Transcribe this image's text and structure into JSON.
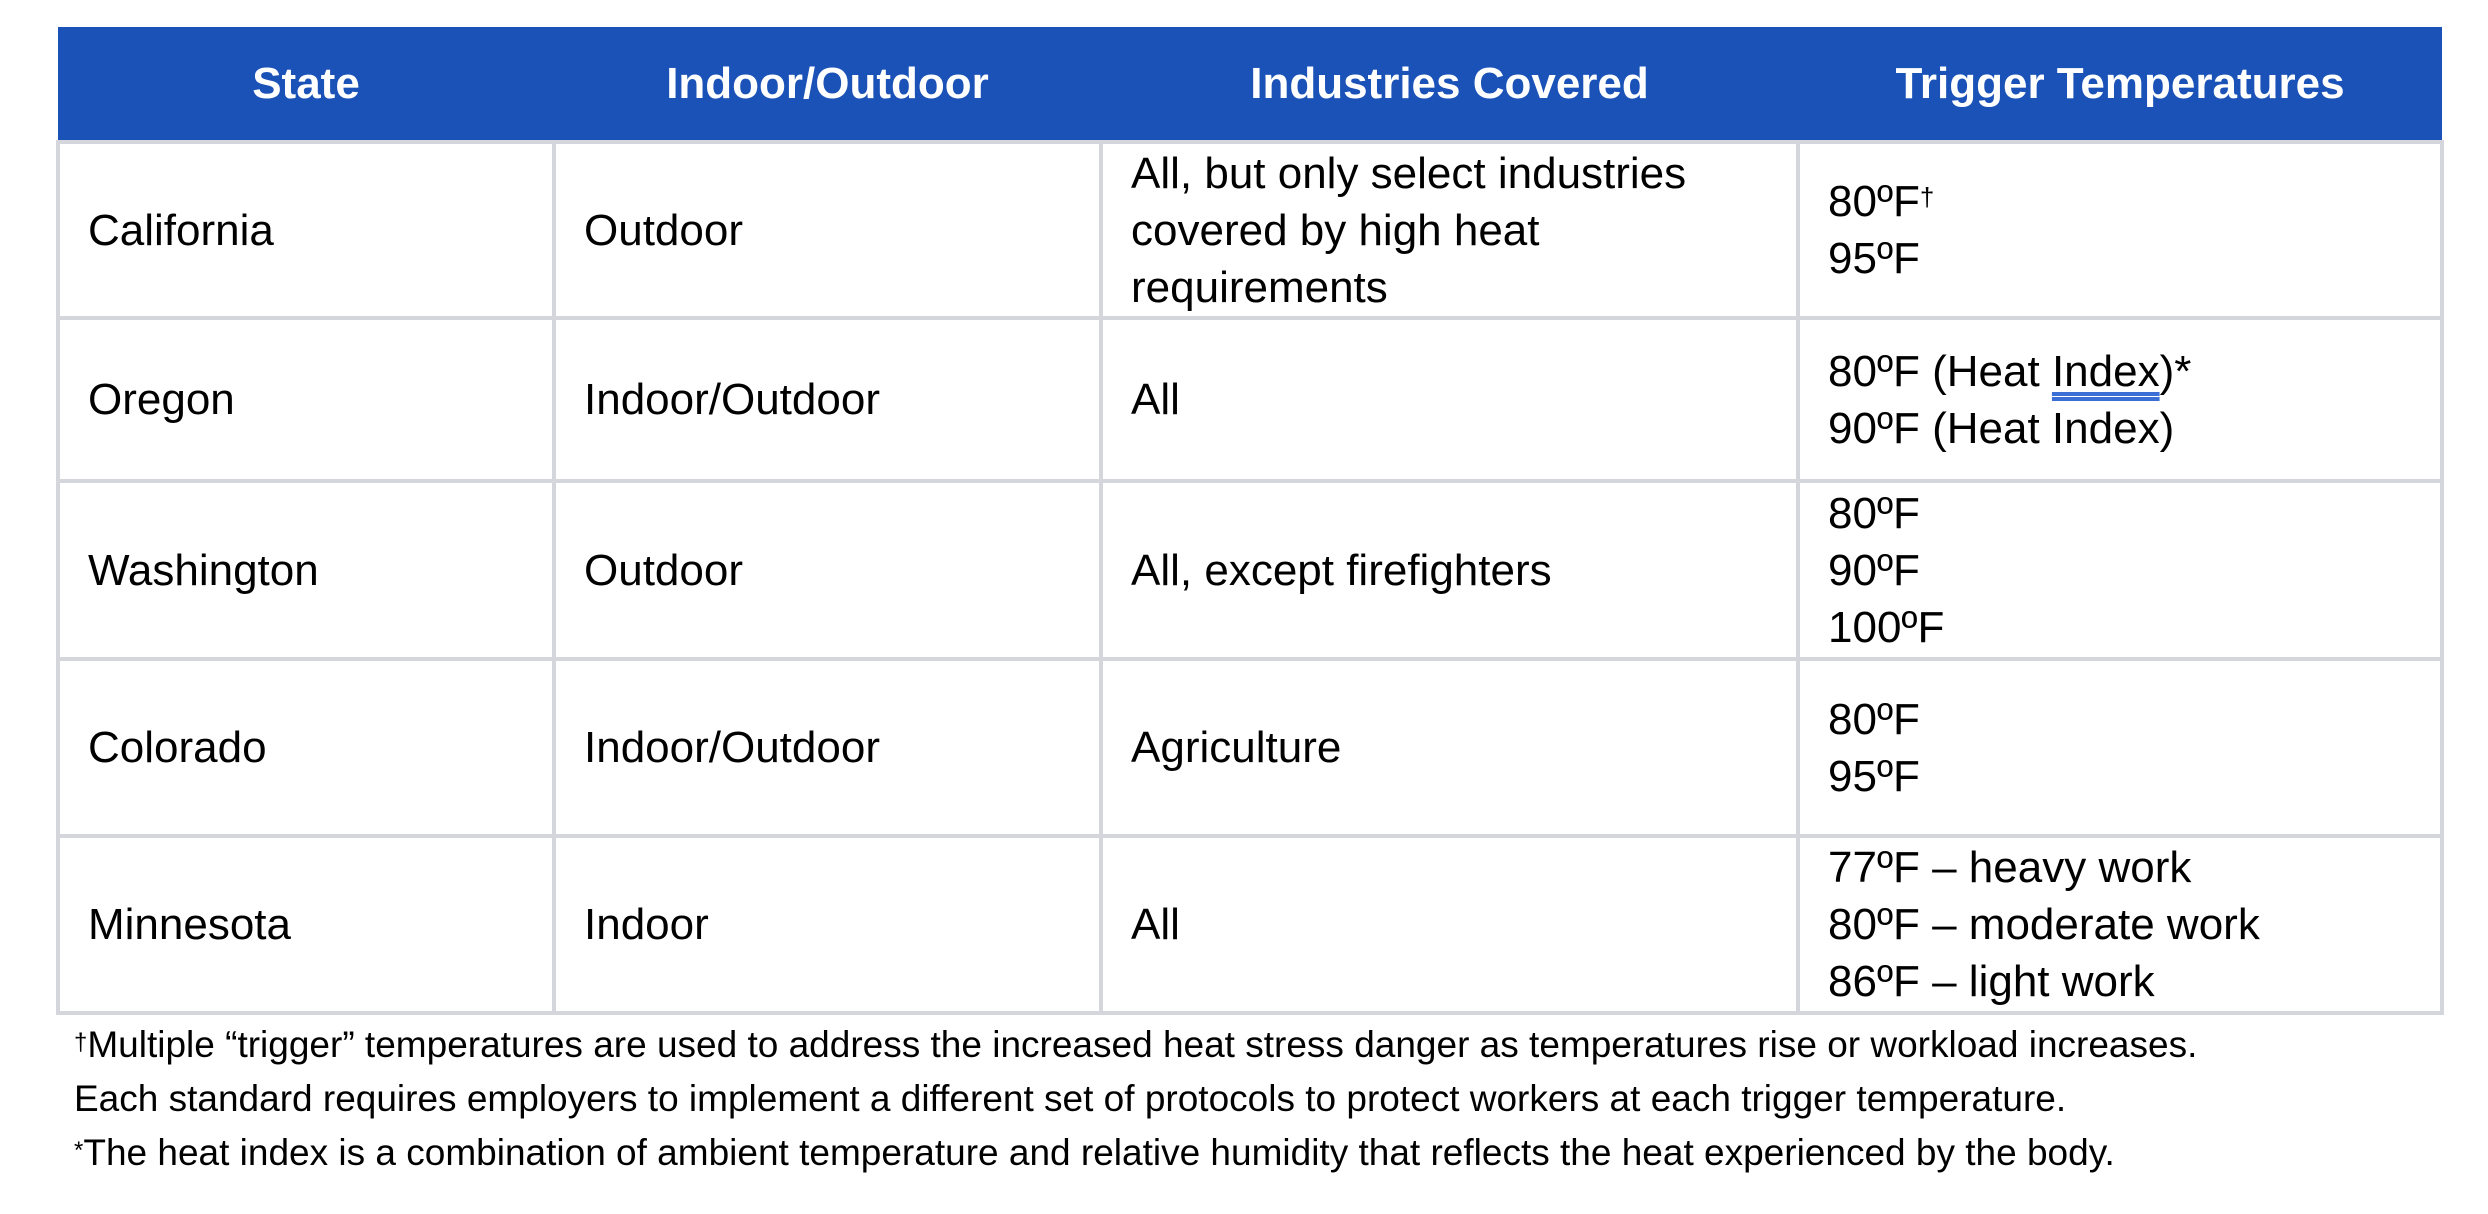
{
  "table": {
    "headers": [
      "State",
      "Indoor/Outdoor",
      "Industries Covered",
      "Trigger Temperatures"
    ],
    "rows": [
      {
        "state": "California",
        "scope": "Outdoor",
        "industries": [
          "All, but only select industries",
          "covered by high heat",
          "requirements"
        ],
        "triggers": [
          "80ºF",
          "95ºF"
        ],
        "trigger0_mark": "†"
      },
      {
        "state": "Oregon",
        "scope": "Indoor/Outdoor",
        "industries": [
          "All"
        ],
        "triggers_oregon": {
          "l1a": "80ºF (Heat ",
          "l1b": "Index",
          "l1c": ")*",
          "l2": "90ºF (Heat Index)"
        }
      },
      {
        "state": "Washington",
        "scope": "Outdoor",
        "industries": [
          "All, except firefighters"
        ],
        "triggers": [
          "80ºF",
          "90ºF",
          "100ºF"
        ]
      },
      {
        "state": "Colorado",
        "scope": "Indoor/Outdoor",
        "industries": [
          "Agriculture"
        ],
        "triggers": [
          "80ºF",
          "95ºF"
        ]
      },
      {
        "state": "Minnesota",
        "scope": "Indoor",
        "industries": [
          "All"
        ],
        "triggers": [
          "77ºF – heavy work",
          "80ºF – moderate work",
          "86ºF – light work"
        ]
      }
    ]
  },
  "footnotes": {
    "dagger": "†",
    "line1": "Multiple “trigger” temperatures are used to address the increased heat stress danger as temperatures rise or workload increases.",
    "line2": "Each standard requires employers to implement a different set of protocols to protect workers at each trigger temperature.",
    "asterisk": "*",
    "line3": "The heat index is a combination of ambient temperature and relative humidity that reflects the heat experienced by the body."
  },
  "colors": {
    "header_bg": "#1a52b8",
    "grid": "#d5d6dc"
  }
}
